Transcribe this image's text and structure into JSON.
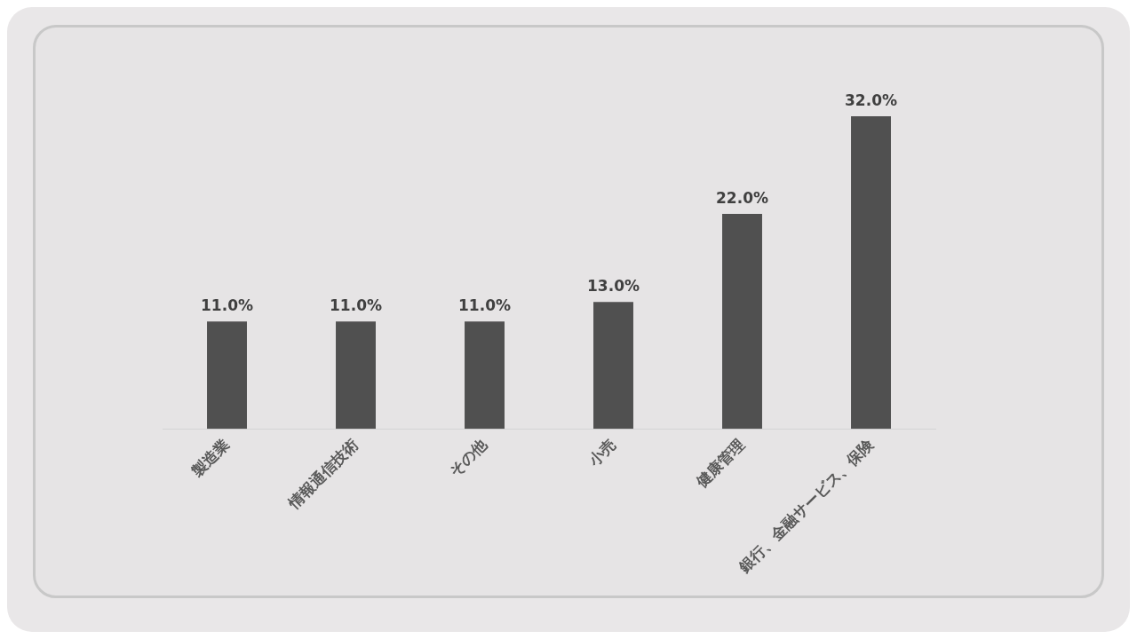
{
  "chart_data": {
    "type": "bar",
    "categories": [
      "製造業",
      "情報通信技術",
      "その他",
      "小売",
      "健康管理",
      "銀行、金融サービス、保険"
    ],
    "values": [
      11.0,
      11.0,
      11.0,
      13.0,
      22.0,
      32.0
    ],
    "value_labels": [
      "11.0%",
      "11.0%",
      "11.0%",
      "13.0%",
      "22.0%",
      "32.0%"
    ],
    "color": "#505050",
    "grid": false,
    "legend": false
  }
}
